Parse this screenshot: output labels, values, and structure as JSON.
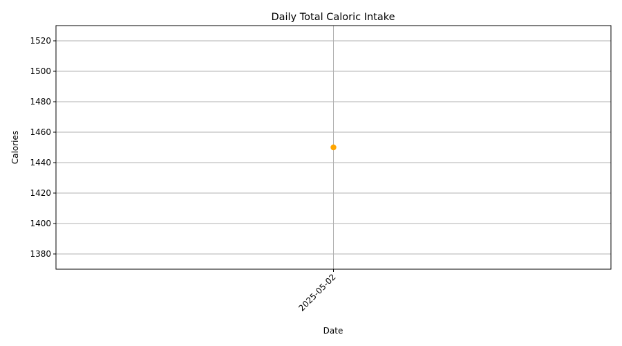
{
  "chart_data": {
    "type": "line",
    "title": "Daily Total Caloric Intake",
    "xlabel": "Date",
    "ylabel": "Calories",
    "x": [
      "2025-05-02"
    ],
    "series": [
      {
        "values": [
          1450
        ],
        "color": "#ffa500",
        "marker": "circle"
      }
    ],
    "ylim": [
      1370,
      1530
    ],
    "yticks": [
      1380,
      1400,
      1420,
      1440,
      1460,
      1480,
      1500,
      1520
    ],
    "grid": true,
    "x_tick_rotation_deg": 45
  }
}
